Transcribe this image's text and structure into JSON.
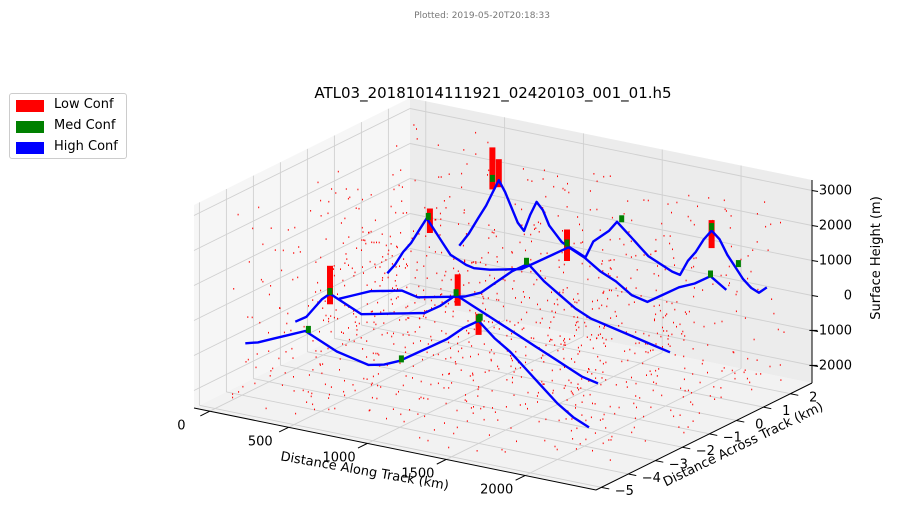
{
  "header": {
    "plotted": "Plotted: 2019-05-20T20:18:33"
  },
  "chart_data": {
    "type": "scatter",
    "projection": "3d",
    "title": "ATL03_20181014111921_02420103_001_01.h5",
    "xlabel": "Distance Along Track (km)",
    "ylabel": "Distance Across Track (km)",
    "zlabel": "Surface Height (m)",
    "xlim": [
      -100,
      2450
    ],
    "ylim": [
      -5.2,
      2.8
    ],
    "zlim": [
      -2500,
      3300
    ],
    "xticks": [
      "0",
      "500",
      "1000",
      "1500",
      "2000"
    ],
    "yticks": [
      "−5",
      "−4",
      "−3",
      "−2",
      "−1",
      "0",
      "1",
      "2"
    ],
    "zticks": [
      "−2000",
      "−1000",
      "0",
      "1000",
      "2000",
      "3000"
    ],
    "grid": true,
    "legend": {
      "position": "outside-upper-left",
      "items": [
        {
          "name": "Low Conf",
          "color": "#ff0000"
        },
        {
          "name": "Med Conf",
          "color": "#008000"
        },
        {
          "name": "High Conf",
          "color": "#0000ff"
        }
      ]
    },
    "series": [
      {
        "name": "High Conf",
        "color": "#0000ff",
        "tracks": [
          {
            "y": 2.0,
            "points": [
              [
                350,
                -200
              ],
              [
                410,
                200
              ],
              [
                470,
                700
              ],
              [
                520,
                1100
              ],
              [
                560,
                1500
              ],
              [
                600,
                1900
              ],
              [
                640,
                1600
              ],
              [
                680,
                1200
              ],
              [
                720,
                800
              ],
              [
                760,
                600
              ],
              [
                800,
                1100
              ],
              [
                840,
                1500
              ],
              [
                880,
                1300
              ],
              [
                920,
                900
              ],
              [
                960,
                700
              ],
              [
                1000,
                500
              ],
              [
                1050,
                400
              ],
              [
                1100,
                300
              ],
              [
                1150,
                200
              ],
              [
                1200,
                700
              ],
              [
                1250,
                900
              ],
              [
                1300,
                1100
              ],
              [
                1350,
                1400
              ],
              [
                1400,
                1200
              ],
              [
                1450,
                1000
              ],
              [
                1500,
                800
              ],
              [
                1550,
                600
              ],
              [
                1600,
                500
              ],
              [
                1650,
                400
              ],
              [
                1700,
                300
              ],
              [
                1750,
                250
              ],
              [
                1800,
                700
              ],
              [
                1850,
                1000
              ],
              [
                1900,
                1400
              ],
              [
                1950,
                1700
              ],
              [
                2000,
                1500
              ],
              [
                2050,
                1100
              ],
              [
                2100,
                800
              ],
              [
                2150,
                500
              ],
              [
                2200,
                300
              ],
              [
                2250,
                200
              ],
              [
                2300,
                400
              ]
            ]
          },
          {
            "y": 0.5,
            "points": [
              [
                150,
                -600
              ],
              [
                200,
                -300
              ],
              [
                250,
                100
              ],
              [
                300,
                400
              ],
              [
                350,
                800
              ],
              [
                400,
                1200
              ],
              [
                450,
                900
              ],
              [
                500,
                600
              ],
              [
                550,
                300
              ],
              [
                600,
                200
              ],
              [
                650,
                100
              ],
              [
                700,
                50
              ],
              [
                800,
                100
              ],
              [
                900,
                200
              ],
              [
                1000,
                300
              ],
              [
                1100,
                600
              ],
              [
                1200,
                900
              ],
              [
                1300,
                1200
              ],
              [
                1400,
                1000
              ],
              [
                1500,
                700
              ],
              [
                1600,
                500
              ],
              [
                1700,
                200
              ],
              [
                1800,
                100
              ],
              [
                1900,
                400
              ],
              [
                2000,
                700
              ],
              [
                2100,
                900
              ],
              [
                2200,
                1200
              ],
              [
                2300,
                900
              ]
            ]
          },
          {
            "y": -1.0,
            "points": [
              [
                100,
                -800
              ],
              [
                200,
                -600
              ],
              [
                300,
                -400
              ],
              [
                400,
                -300
              ],
              [
                500,
                -200
              ],
              [
                600,
                -300
              ],
              [
                700,
                -200
              ],
              [
                800,
                -100
              ],
              [
                900,
                0
              ],
              [
                1000,
                200
              ],
              [
                1100,
                600
              ],
              [
                1200,
                1000
              ],
              [
                1300,
                1300
              ],
              [
                1400,
                900
              ],
              [
                1500,
                600
              ],
              [
                1600,
                300
              ],
              [
                1700,
                100
              ],
              [
                1800,
                0
              ],
              [
                1900,
                -100
              ],
              [
                2000,
                -200
              ],
              [
                2100,
                -300
              ],
              [
                2200,
                -400
              ]
            ]
          },
          {
            "y": -2.5,
            "points": [
              [
                80,
                -900
              ],
              [
                150,
                -700
              ],
              [
                200,
                -400
              ],
              [
                250,
                -100
              ],
              [
                300,
                100
              ],
              [
                400,
                -100
              ],
              [
                500,
                -300
              ],
              [
                600,
                -200
              ],
              [
                700,
                -100
              ],
              [
                800,
                0
              ],
              [
                900,
                100
              ],
              [
                1000,
                400
              ],
              [
                1100,
                800
              ],
              [
                1200,
                600
              ],
              [
                1300,
                400
              ],
              [
                1400,
                200
              ],
              [
                1500,
                0
              ],
              [
                1600,
                -200
              ],
              [
                1700,
                -400
              ],
              [
                1800,
                -600
              ],
              [
                1900,
                -800
              ],
              [
                2000,
                -900
              ]
            ]
          },
          {
            "y": -4.0,
            "points": [
              [
                20,
                -1000
              ],
              [
                100,
                -900
              ],
              [
                200,
                -700
              ],
              [
                300,
                -500
              ],
              [
                400,
                -300
              ],
              [
                500,
                -500
              ],
              [
                600,
                -700
              ],
              [
                700,
                -800
              ],
              [
                800,
                -900
              ],
              [
                900,
                -800
              ],
              [
                1000,
                -600
              ],
              [
                1100,
                -300
              ],
              [
                1200,
                0
              ],
              [
                1300,
                300
              ],
              [
                1400,
                700
              ],
              [
                1500,
                1000
              ],
              [
                1600,
                600
              ],
              [
                1700,
                300
              ],
              [
                1800,
                -100
              ],
              [
                1900,
                -500
              ],
              [
                2000,
                -900
              ],
              [
                2100,
                -1200
              ],
              [
                2200,
                -1400
              ]
            ]
          }
        ]
      },
      {
        "name": "Med Conf",
        "color": "#008000",
        "points": [
          [
            560,
            1900,
            2.0
          ],
          [
            1380,
            1500,
            2.0
          ],
          [
            1950,
            1800,
            2.0
          ],
          [
            2120,
            900,
            2.0
          ],
          [
            410,
            1250,
            0.5
          ],
          [
            1290,
            1300,
            0.5
          ],
          [
            2200,
            1250,
            0.5
          ],
          [
            1290,
            1350,
            -1.0
          ],
          [
            1100,
            850,
            -2.5
          ],
          [
            300,
            150,
            -2.5
          ],
          [
            1500,
            1050,
            -4.0
          ],
          [
            1510,
            1100,
            -4.0
          ],
          [
            420,
            -250,
            -4.0
          ],
          [
            1010,
            -550,
            -4.0
          ]
        ]
      },
      {
        "name": "Low Conf",
        "color": "#ff0000",
        "columns": [
          {
            "x": 560,
            "y": 2.0,
            "z0": 1600,
            "z1": 2800
          },
          {
            "x": 600,
            "y": 2.0,
            "z0": 1700,
            "z1": 2500
          },
          {
            "x": 420,
            "y": 0.5,
            "z0": 800,
            "z1": 1500
          },
          {
            "x": 1290,
            "y": 0.5,
            "z0": 800,
            "z1": 1700
          },
          {
            "x": 1950,
            "y": 2.0,
            "z0": 1200,
            "z1": 2000
          },
          {
            "x": 300,
            "y": -2.5,
            "z0": -200,
            "z1": 900
          },
          {
            "x": 1110,
            "y": -2.5,
            "z0": 500,
            "z1": 1400
          },
          {
            "x": 1500,
            "y": -4.0,
            "z0": 600,
            "z1": 1200
          }
        ],
        "scatter_extent": {
          "x": [
            0,
            2400
          ],
          "y": [
            -5.0,
            2.6
          ],
          "z": [
            -2400,
            3000
          ]
        }
      }
    ]
  }
}
